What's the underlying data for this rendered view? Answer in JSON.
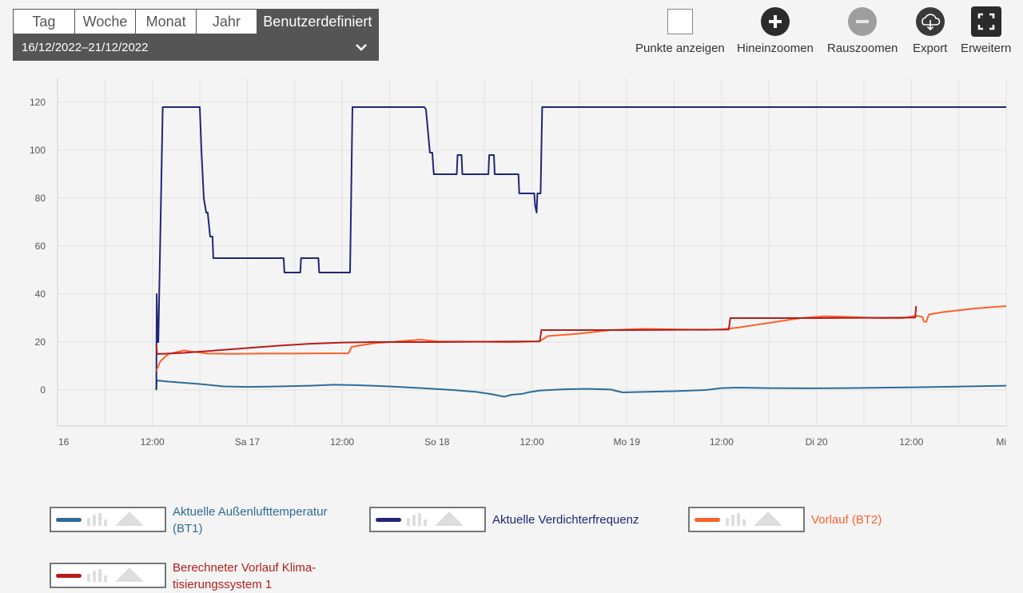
{
  "period_tabs": [
    {
      "label": "Tag"
    },
    {
      "label": "Woche"
    },
    {
      "label": "Monat"
    },
    {
      "label": "Jahr"
    },
    {
      "label": "Benutzerdefiniert",
      "active": true
    }
  ],
  "date_range": "16/12/2022–21/12/2022",
  "toolbar": {
    "show_points": "Punkte anzeigen",
    "zoom_in": "Hineinzoomen",
    "zoom_out": "Rauszoomen",
    "export": "Export",
    "expand": "Erweitern"
  },
  "icons": {
    "zoom_in": "plus-circle-icon",
    "zoom_out": "minus-circle-icon",
    "export": "cloud-download-icon",
    "expand": "fullscreen-icon",
    "date_range": "chevron-down-icon"
  },
  "legend": [
    {
      "label_lines": [
        "Aktuelle Außenlufttemperatur",
        "(BT1)"
      ],
      "color": "#2e6b96"
    },
    {
      "label_lines": [
        "Aktuelle Verdichterfrequenz"
      ],
      "color": "#1f2679"
    },
    {
      "label_lines": [
        "Vorlauf (BT2)"
      ],
      "color": "#fb612c"
    },
    {
      "label_lines": [
        "Berechneter Vorlauf Klima-",
        "tisierungssystem 1"
      ],
      "color": "#b71c1c"
    }
  ],
  "chart_data": {
    "type": "line",
    "x_unit": "hours since 16/12/2022 00:00",
    "xlim": [
      0,
      120
    ],
    "ylim": [
      -15,
      130
    ],
    "y_ticks": [
      0,
      20,
      40,
      60,
      80,
      100,
      120
    ],
    "x_ticks": [
      {
        "x": 0,
        "label": "16"
      },
      {
        "x": 12,
        "label": "12:00"
      },
      {
        "x": 24,
        "label": "Sa 17"
      },
      {
        "x": 36,
        "label": "12:00"
      },
      {
        "x": 48,
        "label": "So 18"
      },
      {
        "x": 60,
        "label": "12:00"
      },
      {
        "x": 72,
        "label": "Mo 19"
      },
      {
        "x": 84,
        "label": "12:00"
      },
      {
        "x": 96,
        "label": "Di 20"
      },
      {
        "x": 108,
        "label": "12:00"
      },
      {
        "x": 120,
        "label": "Mi"
      }
    ],
    "grid": true,
    "series": [
      {
        "name": "Aktuelle Außenlufttemperatur (BT1)",
        "color": "#2e6b96",
        "points": [
          [
            12.5,
            0
          ],
          [
            12.55,
            4
          ],
          [
            14,
            3.5
          ],
          [
            18,
            2.5
          ],
          [
            21,
            1.5
          ],
          [
            24,
            1.3
          ],
          [
            28,
            1.5
          ],
          [
            32,
            1.8
          ],
          [
            35,
            2.2
          ],
          [
            38,
            2
          ],
          [
            42,
            1.5
          ],
          [
            46,
            0.8
          ],
          [
            50,
            0
          ],
          [
            53,
            -0.8
          ],
          [
            55,
            -1.8
          ],
          [
            56.5,
            -2.8
          ],
          [
            57.4,
            -2
          ],
          [
            58.8,
            -1.6
          ],
          [
            59.5,
            -1
          ],
          [
            61,
            -0.2
          ],
          [
            64,
            0.3
          ],
          [
            67,
            0.5
          ],
          [
            70,
            0.2
          ],
          [
            70.8,
            -0.5
          ],
          [
            71.5,
            -1
          ],
          [
            74,
            -0.8
          ],
          [
            78,
            -0.5
          ],
          [
            82,
            0
          ],
          [
            84,
            0.8
          ],
          [
            86,
            1
          ],
          [
            90,
            0.8
          ],
          [
            95,
            0.7
          ],
          [
            100,
            0.8
          ],
          [
            105,
            1
          ],
          [
            110,
            1.2
          ],
          [
            115,
            1.5
          ],
          [
            120,
            1.8
          ]
        ]
      },
      {
        "name": "Aktuelle Verdichterfrequenz",
        "color": "#1f2679",
        "points": [
          [
            12.5,
            0
          ],
          [
            12.55,
            40
          ],
          [
            12.65,
            20
          ],
          [
            12.75,
            20
          ],
          [
            13.3,
            118
          ],
          [
            18,
            118
          ],
          [
            18.2,
            100
          ],
          [
            18.5,
            80
          ],
          [
            18.8,
            74
          ],
          [
            19,
            74
          ],
          [
            19.3,
            64
          ],
          [
            19.6,
            64
          ],
          [
            19.7,
            55
          ],
          [
            28.6,
            55
          ],
          [
            28.7,
            49
          ],
          [
            30.7,
            49
          ],
          [
            30.8,
            55
          ],
          [
            33,
            55
          ],
          [
            33.1,
            49
          ],
          [
            37,
            49
          ],
          [
            37.3,
            118
          ],
          [
            46.4,
            118
          ],
          [
            46.6,
            117
          ],
          [
            47.1,
            99
          ],
          [
            47.4,
            99
          ],
          [
            47.6,
            90
          ],
          [
            50.5,
            90
          ],
          [
            50.6,
            98
          ],
          [
            51.1,
            98
          ],
          [
            51.2,
            90
          ],
          [
            54.5,
            90
          ],
          [
            54.6,
            98
          ],
          [
            55.2,
            98
          ],
          [
            55.3,
            90
          ],
          [
            58.3,
            90
          ],
          [
            58.4,
            82
          ],
          [
            60.3,
            82
          ],
          [
            60.4,
            77
          ],
          [
            60.6,
            74
          ],
          [
            60.7,
            82
          ],
          [
            61.1,
            82
          ],
          [
            61.3,
            118
          ],
          [
            120,
            118
          ]
        ]
      },
      {
        "name": "Vorlauf (BT2)",
        "color": "#fb612c",
        "points": [
          [
            12.5,
            8
          ],
          [
            13,
            12
          ],
          [
            14,
            15
          ],
          [
            16,
            16.5
          ],
          [
            17,
            16
          ],
          [
            19,
            15.2
          ],
          [
            22,
            15.1
          ],
          [
            26,
            15.2
          ],
          [
            30,
            15.2
          ],
          [
            34,
            15.3
          ],
          [
            36.8,
            15.3
          ],
          [
            37.2,
            18
          ],
          [
            40,
            19.5
          ],
          [
            44,
            20.5
          ],
          [
            46,
            21
          ],
          [
            48,
            20.3
          ],
          [
            52,
            20.2
          ],
          [
            56,
            20
          ],
          [
            58,
            20
          ],
          [
            60,
            20.2
          ],
          [
            61,
            20.3
          ],
          [
            62,
            22.5
          ],
          [
            66,
            23.5
          ],
          [
            70,
            25
          ],
          [
            74,
            25.5
          ],
          [
            78,
            25.3
          ],
          [
            82,
            25.1
          ],
          [
            84,
            25.3
          ],
          [
            86,
            26
          ],
          [
            90,
            28
          ],
          [
            94,
            30
          ],
          [
            97,
            30.8
          ],
          [
            100,
            30.5
          ],
          [
            104,
            30
          ],
          [
            107,
            30
          ],
          [
            108.6,
            31
          ],
          [
            109.4,
            30.5
          ],
          [
            109.6,
            28.5
          ],
          [
            109.9,
            28.5
          ],
          [
            110.2,
            31.5
          ],
          [
            112,
            32.5
          ],
          [
            116,
            34
          ],
          [
            120,
            35
          ]
        ]
      },
      {
        "name": "Berechneter Vorlauf Klimatisierungssystem 1",
        "color": "#b71c1c",
        "points": [
          [
            12.5,
            19
          ],
          [
            12.6,
            15
          ],
          [
            16,
            15.5
          ],
          [
            20,
            16.5
          ],
          [
            24,
            17.5
          ],
          [
            28,
            18.5
          ],
          [
            32,
            19.3
          ],
          [
            36,
            19.8
          ],
          [
            40,
            20
          ],
          [
            48,
            20
          ],
          [
            56,
            20.2
          ],
          [
            61,
            20.3
          ],
          [
            61.2,
            25
          ],
          [
            72,
            25
          ],
          [
            84,
            25.2
          ],
          [
            84.9,
            25.2
          ],
          [
            85.1,
            30
          ],
          [
            96,
            30
          ],
          [
            108,
            30.2
          ],
          [
            108.5,
            30.2
          ],
          [
            108.6,
            35
          ]
        ]
      }
    ]
  }
}
